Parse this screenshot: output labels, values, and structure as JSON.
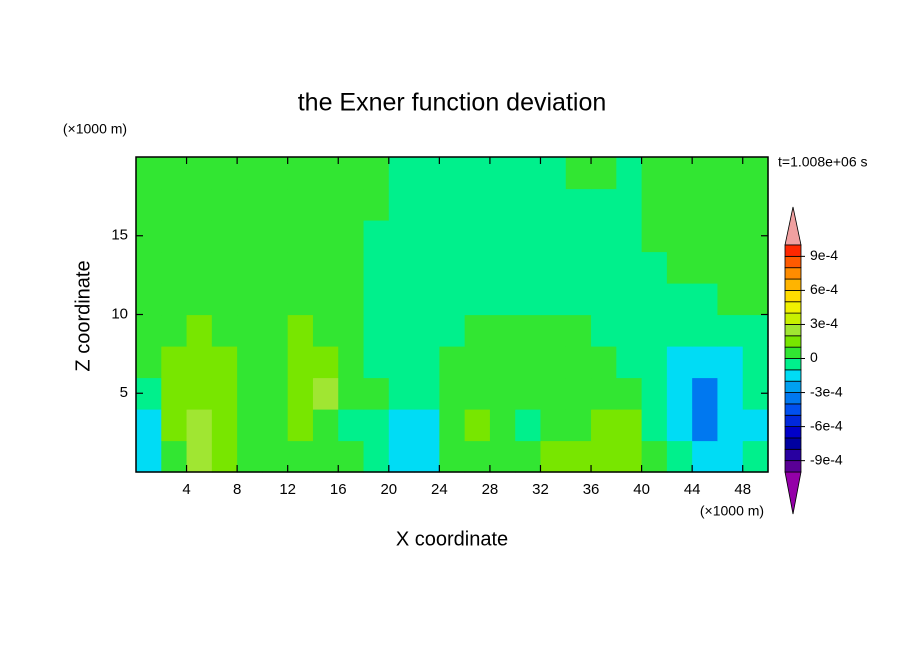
{
  "chart_data": {
    "type": "contour",
    "title": "the Exner function deviation",
    "x_label": "X coordinate",
    "y_label": "Z coordinate",
    "x_unit": "(×1000 m)",
    "y_unit": "(×1000 m)",
    "annotation": "t=1.008e+06 s",
    "xlim": [
      0,
      50
    ],
    "ylim": [
      0,
      20
    ],
    "xticks": [
      4,
      8,
      12,
      16,
      20,
      24,
      28,
      32,
      36,
      40,
      44,
      48
    ],
    "yticks": [
      5,
      10,
      15
    ],
    "x": [
      1,
      3,
      5,
      7,
      9,
      11,
      13,
      15,
      17,
      19,
      21,
      23,
      25,
      27,
      29,
      31,
      33,
      35,
      37,
      39,
      41,
      43,
      45,
      47,
      49
    ],
    "y": [
      1,
      3,
      5,
      7,
      9,
      11,
      13,
      15,
      17,
      19
    ],
    "z": [
      [
        -0.00015,
        5e-05,
        0.00025,
        0.00015,
        5e-05,
        5e-05,
        5e-05,
        5e-05,
        5e-05,
        -5e-05,
        -0.00015,
        -0.00015,
        5e-05,
        5e-05,
        5e-05,
        5e-05,
        0.00015,
        0.00015,
        0.00015,
        0.00015,
        5e-05,
        -5e-05,
        -0.00015,
        -0.00015,
        -5e-05
      ],
      [
        -0.00015,
        0.00015,
        0.00025,
        0.00015,
        5e-05,
        5e-05,
        0.00015,
        5e-05,
        -5e-05,
        -5e-05,
        -0.00015,
        -0.00015,
        5e-05,
        0.00015,
        5e-05,
        -5e-05,
        5e-05,
        5e-05,
        0.00015,
        0.00015,
        -5e-05,
        -0.00015,
        -0.00035,
        -0.00015,
        -0.00015
      ],
      [
        -5e-05,
        0.00015,
        0.00015,
        0.00015,
        5e-05,
        5e-05,
        0.00015,
        0.00025,
        5e-05,
        5e-05,
        -5e-05,
        -5e-05,
        5e-05,
        5e-05,
        5e-05,
        5e-05,
        5e-05,
        5e-05,
        5e-05,
        5e-05,
        -5e-05,
        -0.00015,
        -0.00035,
        -0.00015,
        -5e-05
      ],
      [
        5e-05,
        0.00015,
        0.00015,
        0.00015,
        5e-05,
        5e-05,
        0.00015,
        0.00015,
        5e-05,
        -5e-05,
        -5e-05,
        -5e-05,
        5e-05,
        5e-05,
        5e-05,
        5e-05,
        5e-05,
        5e-05,
        5e-05,
        -5e-05,
        -5e-05,
        -0.00015,
        -0.00015,
        -0.00015,
        -5e-05
      ],
      [
        5e-05,
        5e-05,
        0.00015,
        5e-05,
        5e-05,
        5e-05,
        0.00015,
        5e-05,
        5e-05,
        -5e-05,
        -5e-05,
        -5e-05,
        -5e-05,
        5e-05,
        5e-05,
        5e-05,
        5e-05,
        5e-05,
        -5e-05,
        -5e-05,
        -5e-05,
        -5e-05,
        -5e-05,
        -5e-05,
        -5e-05
      ],
      [
        5e-05,
        5e-05,
        5e-05,
        5e-05,
        5e-05,
        5e-05,
        5e-05,
        5e-05,
        5e-05,
        -5e-05,
        -5e-05,
        -5e-05,
        -5e-05,
        -5e-05,
        -5e-05,
        -5e-05,
        -5e-05,
        -5e-05,
        -5e-05,
        -5e-05,
        -5e-05,
        -5e-05,
        -5e-05,
        5e-05,
        5e-05
      ],
      [
        5e-05,
        5e-05,
        5e-05,
        5e-05,
        5e-05,
        5e-05,
        5e-05,
        5e-05,
        5e-05,
        -5e-05,
        -5e-05,
        -5e-05,
        -5e-05,
        -5e-05,
        -5e-05,
        -5e-05,
        -5e-05,
        -5e-05,
        -5e-05,
        -5e-05,
        -5e-05,
        5e-05,
        5e-05,
        5e-05,
        5e-05
      ],
      [
        5e-05,
        5e-05,
        5e-05,
        5e-05,
        5e-05,
        5e-05,
        5e-05,
        5e-05,
        5e-05,
        -5e-05,
        -5e-05,
        -5e-05,
        -5e-05,
        -5e-05,
        -5e-05,
        -5e-05,
        -5e-05,
        -5e-05,
        -5e-05,
        -5e-05,
        5e-05,
        5e-05,
        5e-05,
        5e-05,
        5e-05
      ],
      [
        5e-05,
        5e-05,
        5e-05,
        5e-05,
        5e-05,
        5e-05,
        5e-05,
        5e-05,
        5e-05,
        5e-05,
        -5e-05,
        -5e-05,
        -5e-05,
        -5e-05,
        -5e-05,
        -5e-05,
        -5e-05,
        -5e-05,
        -5e-05,
        -5e-05,
        5e-05,
        5e-05,
        5e-05,
        5e-05,
        5e-05
      ],
      [
        5e-05,
        5e-05,
        5e-05,
        5e-05,
        5e-05,
        5e-05,
        5e-05,
        5e-05,
        5e-05,
        5e-05,
        -5e-05,
        -5e-05,
        -5e-05,
        -5e-05,
        -5e-05,
        -5e-05,
        -5e-05,
        5e-05,
        5e-05,
        -5e-05,
        5e-05,
        5e-05,
        5e-05,
        5e-05,
        5e-05
      ]
    ],
    "levels": [
      -0.001,
      -0.0009,
      -0.0008,
      -0.0007,
      -0.0006,
      -0.0005,
      -0.0004,
      -0.0003,
      -0.0002,
      -0.0001,
      0,
      0.0001,
      0.0002,
      0.0003,
      0.0004,
      0.0005,
      0.0006,
      0.0007,
      0.0008,
      0.0009,
      0.001
    ],
    "colors": [
      "#9400a8",
      "#5a0096",
      "#2800a0",
      "#0000a0",
      "#0000c8",
      "#0028dc",
      "#0050f0",
      "#0078f0",
      "#00a0f0",
      "#00dcf5",
      "#00f08c",
      "#32e632",
      "#78e600",
      "#a0e632",
      "#c8f000",
      "#f0f000",
      "#ffdc00",
      "#ffb400",
      "#ff8c00",
      "#ff5a00",
      "#ff2800",
      "#f0a0a0"
    ],
    "colorbar_ticks": [
      {
        "value": 0.0009,
        "label": "9e-4"
      },
      {
        "value": 0.0006,
        "label": "6e-4"
      },
      {
        "value": 0.0003,
        "label": "3e-4"
      },
      0,
      {
        "value": -0.0003,
        "label": "-3e-4"
      },
      {
        "value": -0.0006,
        "label": "-6e-4"
      },
      {
        "value": -0.0009,
        "label": "-9e-4"
      }
    ]
  }
}
